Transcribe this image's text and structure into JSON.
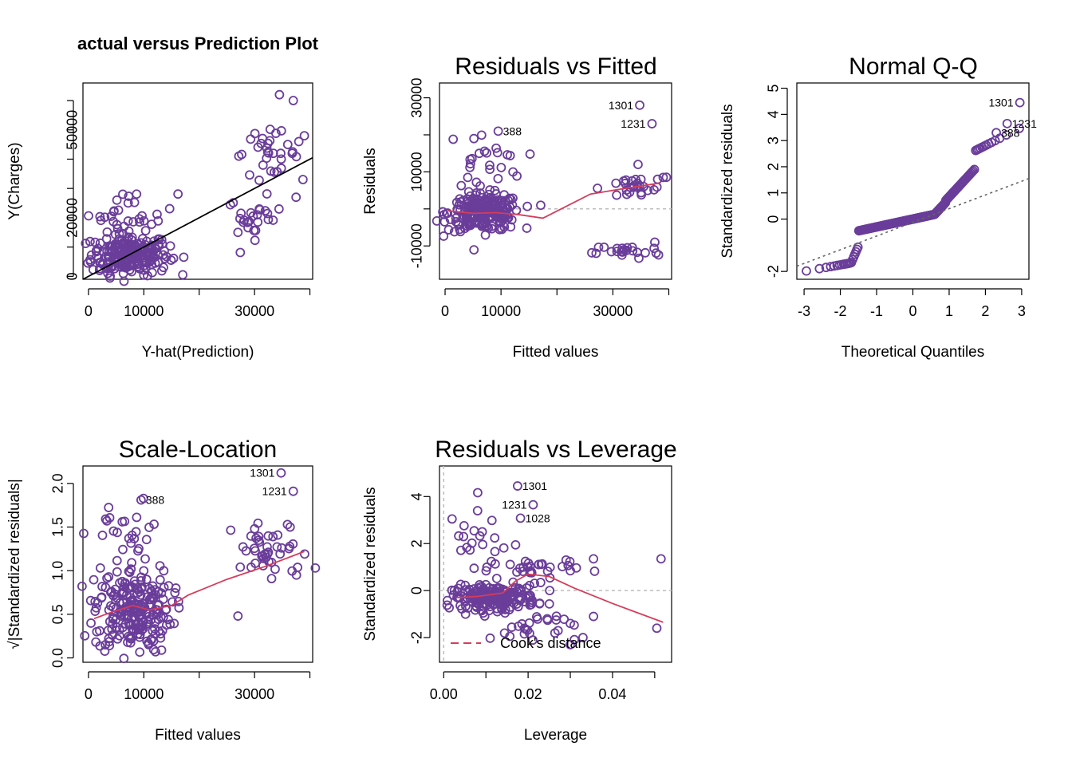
{
  "colors": {
    "points": "#6a3d9a",
    "smooth": "#d63c5a",
    "refline": "#000000",
    "zero": "#bdbdbd",
    "qqline": "#666666"
  },
  "chart_data": [
    {
      "type": "scatter",
      "title": "actual versus Prediction Plot",
      "xlabel": "Y-hat(Prediction)",
      "ylabel": "Y(Charges)",
      "xlim": [
        -1000,
        40500
      ],
      "ylim": [
        -1000,
        66000
      ],
      "xticks": [
        0,
        10000,
        30000
      ],
      "yticks": [
        0,
        20000,
        50000
      ],
      "minor_xticks": [
        20000,
        40000
      ],
      "minor_yticks": [
        10000,
        30000,
        40000,
        60000
      ],
      "refline": {
        "from": [
          -1000,
          -1000
        ],
        "to": [
          40500,
          40500
        ]
      },
      "labeled_points": [],
      "clusters": [
        {
          "cx": 7500,
          "cy": 7500,
          "sx": 3500,
          "sy": 3500,
          "n": 230
        },
        {
          "cx": 8000,
          "cy": 22000,
          "sx": 4000,
          "sy": 3500,
          "n": 30
        },
        {
          "cx": 30000,
          "cy": 20000,
          "sx": 2500,
          "sy": 3500,
          "n": 25
        },
        {
          "cx": 32000,
          "cy": 42000,
          "sx": 3000,
          "sy": 3500,
          "n": 30
        }
      ],
      "points": [
        [
          34500,
          62000
        ],
        [
          37000,
          60000
        ],
        [
          39000,
          48000
        ],
        [
          38000,
          46000
        ],
        [
          36000,
          45000
        ],
        [
          37500,
          27000
        ],
        [
          27000,
          15000
        ],
        [
          2000,
          2000
        ],
        [
          3500,
          1000
        ],
        [
          4000,
          3000
        ]
      ]
    },
    {
      "type": "scatter",
      "title": "Residuals vs Fitted",
      "xlabel": "Fitted values",
      "ylabel": "Residuals",
      "xlim": [
        -1000,
        40500
      ],
      "ylim": [
        -19000,
        34000
      ],
      "xticks": [
        0,
        10000,
        30000
      ],
      "yticks": [
        -10000,
        10000,
        30000
      ],
      "minor_xticks": [
        20000,
        40000
      ],
      "minor_yticks": [
        0,
        20000
      ],
      "zero_line": 0,
      "smooth": [
        [
          500,
          -500
        ],
        [
          5000,
          -1200
        ],
        [
          9000,
          -1000
        ],
        [
          13000,
          -1500
        ],
        [
          17500,
          -2500
        ],
        [
          26000,
          4000
        ],
        [
          32000,
          5500
        ],
        [
          38500,
          7000
        ]
      ],
      "labeled_points": [
        {
          "label": "1301",
          "x": 34800,
          "y": 28000,
          "side": "left"
        },
        {
          "label": "1231",
          "x": 37000,
          "y": 23000,
          "side": "left"
        },
        {
          "label": "388",
          "x": 9500,
          "y": 21000,
          "side": "right"
        }
      ],
      "clusters": [
        {
          "cx": 7000,
          "cy": -1000,
          "sx": 3200,
          "sy": 2500,
          "n": 230
        },
        {
          "cx": 7000,
          "cy": 13000,
          "sx": 3500,
          "sy": 4000,
          "n": 25
        },
        {
          "cx": 33500,
          "cy": 5500,
          "sx": 3000,
          "sy": 1500,
          "n": 25
        },
        {
          "cx": 32500,
          "cy": -11500,
          "sx": 3000,
          "sy": 1000,
          "n": 22
        }
      ],
      "points": [
        [
          38000,
          8000
        ],
        [
          39000,
          8500
        ],
        [
          34500,
          12000
        ],
        [
          27000,
          -12000
        ],
        [
          37500,
          -9000
        ]
      ]
    },
    {
      "type": "scatter",
      "title": "Normal Q-Q",
      "xlabel": "Theoretical Quantiles",
      "ylabel": "Standardized residuals",
      "xlim": [
        -3.2,
        3.2
      ],
      "ylim": [
        -2.3,
        5.2
      ],
      "xticks": [
        -3,
        -2,
        -1,
        0,
        1,
        2,
        3
      ],
      "yticks": [
        -2,
        0,
        1,
        2,
        3,
        4,
        5
      ],
      "ytick_labels": [
        "-2",
        "0",
        "1",
        "2",
        "3",
        "4",
        "5"
      ],
      "qq_line": {
        "from": [
          -3.2,
          -1.8
        ],
        "to": [
          3.2,
          1.55
        ]
      },
      "qq_count": 300,
      "labeled_points": [
        {
          "label": "1301",
          "x": 2.95,
          "y": 4.45,
          "side": "left"
        },
        {
          "label": "1231",
          "x": 2.6,
          "y": 3.65,
          "side": "right"
        },
        {
          "label": "388",
          "x": 2.3,
          "y": 3.3,
          "side": "right"
        }
      ]
    },
    {
      "type": "scatter",
      "title": "Scale-Location",
      "xlabel": "Fitted values",
      "ylabel": "√|Standardized residuals|",
      "xlim": [
        -1000,
        40500
      ],
      "ylim": [
        -0.05,
        2.2
      ],
      "xticks": [
        0,
        10000,
        30000
      ],
      "yticks": [
        0.0,
        0.5,
        1.0,
        1.5,
        2.0
      ],
      "ytick_labels": [
        "0.0",
        "0.5",
        "1.0",
        "1.5",
        "2.0"
      ],
      "minor_xticks": [
        20000,
        40000
      ],
      "smooth": [
        [
          1000,
          0.45
        ],
        [
          4000,
          0.52
        ],
        [
          8000,
          0.6
        ],
        [
          11000,
          0.55
        ],
        [
          15000,
          0.6
        ],
        [
          18000,
          0.72
        ],
        [
          25000,
          0.9
        ],
        [
          32000,
          1.05
        ],
        [
          39000,
          1.22
        ]
      ],
      "labeled_points": [
        {
          "label": "1301",
          "x": 34800,
          "y": 2.12,
          "side": "left"
        },
        {
          "label": "1231",
          "x": 37000,
          "y": 1.91,
          "side": "left"
        },
        {
          "label": "388",
          "x": 9500,
          "y": 1.81,
          "side": "right"
        }
      ],
      "clusters": [
        {
          "cx": 8000,
          "cy": 0.55,
          "sx": 3500,
          "sy": 0.25,
          "n": 230
        },
        {
          "cx": 7000,
          "cy": 1.4,
          "sx": 3500,
          "sy": 0.2,
          "n": 25
        },
        {
          "cx": 33000,
          "cy": 1.2,
          "sx": 3500,
          "sy": 0.18,
          "n": 45
        }
      ],
      "points": [
        [
          27000,
          0.48
        ],
        [
          1500,
          0.3
        ]
      ]
    },
    {
      "type": "scatter",
      "title": "Residuals vs Leverage",
      "xlabel": "Leverage",
      "ylabel": "Standardized residuals",
      "xlim": [
        -0.001,
        0.054
      ],
      "ylim": [
        -3.05,
        5.3
      ],
      "xticks": [
        0.0,
        0.02,
        0.04
      ],
      "xtick_labels": [
        "0.00",
        "0.02",
        "0.04"
      ],
      "minor_xticks": [
        0.01,
        0.03,
        0.05
      ],
      "yticks": [
        -2,
        0,
        2,
        4
      ],
      "zero_line": 0,
      "v_zero_line": 0,
      "smooth": [
        [
          0.003,
          -0.3
        ],
        [
          0.008,
          -0.25
        ],
        [
          0.014,
          -0.1
        ],
        [
          0.017,
          0.4
        ],
        [
          0.02,
          0.7
        ],
        [
          0.025,
          0.6
        ],
        [
          0.031,
          0.1
        ],
        [
          0.04,
          -0.55
        ],
        [
          0.052,
          -1.35
        ]
      ],
      "legend": {
        "label": "Cook's distance",
        "position": "bottom-left"
      },
      "labeled_points": [
        {
          "label": "1301",
          "x": 0.0175,
          "y": 4.45,
          "side": "right"
        },
        {
          "label": "1231",
          "x": 0.0212,
          "y": 3.65,
          "side": "left"
        },
        {
          "label": "1028",
          "x": 0.0182,
          "y": 3.08,
          "side": "right"
        }
      ],
      "clusters": [
        {
          "cx": 0.012,
          "cy": -0.3,
          "sx": 0.005,
          "sy": 0.25,
          "n": 200
        },
        {
          "cx": 0.009,
          "cy": 2.0,
          "sx": 0.004,
          "sy": 0.9,
          "n": 25
        },
        {
          "cx": 0.022,
          "cy": 0.9,
          "sx": 0.005,
          "sy": 0.25,
          "n": 30
        },
        {
          "cx": 0.021,
          "cy": -1.6,
          "sx": 0.005,
          "sy": 0.35,
          "n": 25
        }
      ],
      "points": [
        [
          0.0515,
          1.35
        ],
        [
          0.0355,
          1.35
        ],
        [
          0.029,
          1.3
        ],
        [
          0.0505,
          -1.6
        ],
        [
          0.0355,
          -1.1
        ],
        [
          0.03,
          -1.4
        ],
        [
          0.033,
          -2.0
        ],
        [
          0.03,
          -2.3
        ]
      ]
    }
  ]
}
